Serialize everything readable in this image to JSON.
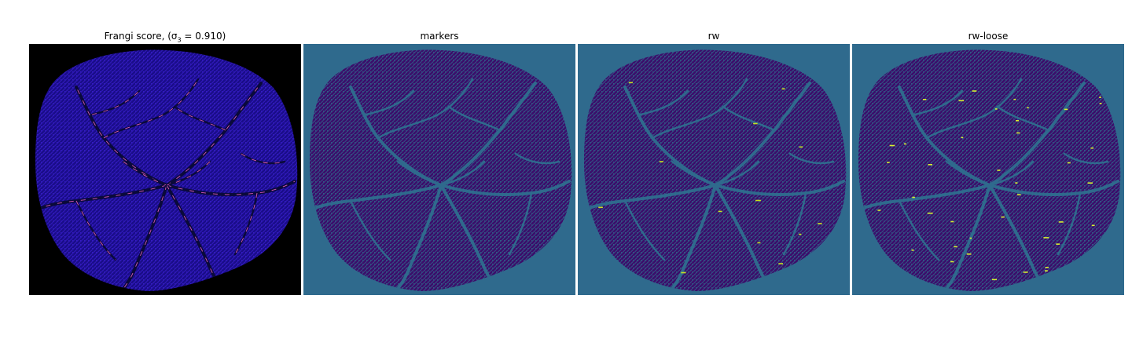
{
  "panels": [
    {
      "title": "Frangi score, (σ₃ = 0.910)",
      "title_main": "Frangi score, (σ",
      "title_sub": "3",
      "title_tail": " = 0.910)",
      "background": "#000000",
      "tissue": "#1a0d8a",
      "mesh": "#3a1fd0",
      "vessel": "#0a0a3a",
      "highlight": "#ff66cc"
    },
    {
      "title": "markers",
      "background": "#2f6a8d",
      "tissue": "#3b0f6b",
      "mesh": "#2f6a8d",
      "vessel": "#2f6a8d",
      "highlight": ""
    },
    {
      "title": "rw",
      "background": "#2f6a8d",
      "tissue": "#3b0f6b",
      "mesh": "#2f6a8d",
      "vessel": "#2f6a8d",
      "highlight": "#c8e020"
    },
    {
      "title": "rw-loose",
      "background": "#2f6a8d",
      "tissue": "#3b0f6b",
      "mesh": "#2f6a8d",
      "vessel": "#2f6a8d",
      "highlight": "#d8f030"
    }
  ]
}
